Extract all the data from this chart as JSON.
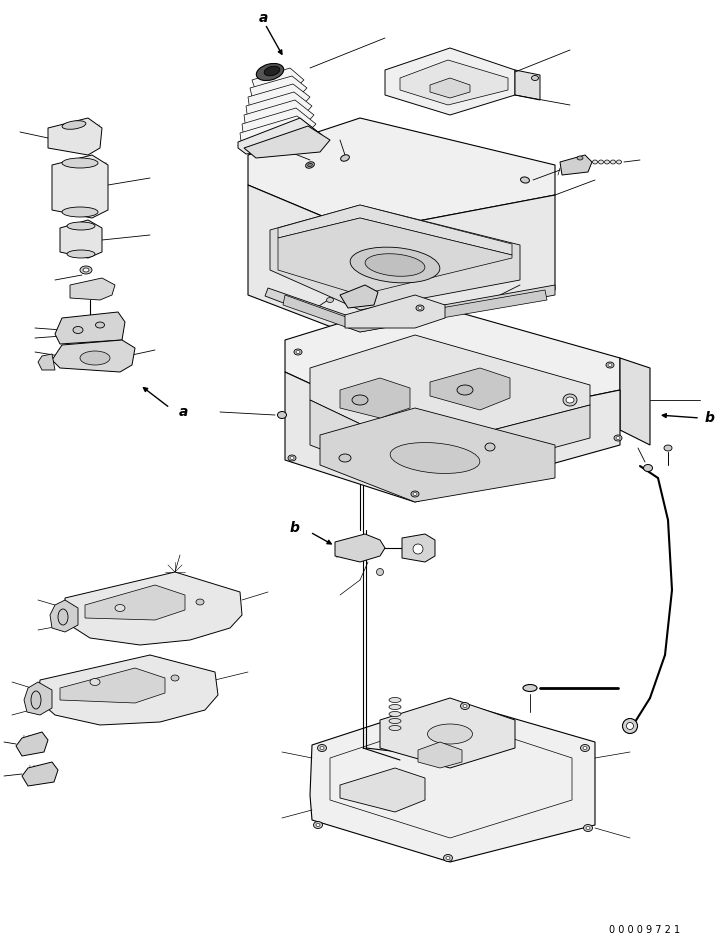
{
  "bg_color": "#ffffff",
  "lc": "#000000",
  "fig_width": 7.16,
  "fig_height": 9.44,
  "serial_number": "0 0 0 0 9 7 2 1",
  "label_a": "a",
  "label_b": "b",
  "lw_main": 0.7,
  "lw_thin": 0.4,
  "lw_thick": 1.0
}
